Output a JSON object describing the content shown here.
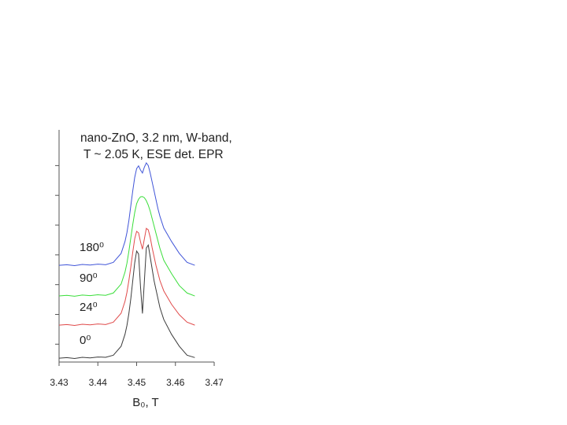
{
  "chart_data": {
    "type": "line",
    "title": [
      "nano-ZnO, 3.2 nm, W-band,",
      "T ~ 2.05 K, ESE det. EPR"
    ],
    "xlabel": "B₀, T",
    "x": [
      3.43,
      3.432,
      3.434,
      3.436,
      3.438,
      3.44,
      3.442,
      3.444,
      3.446,
      3.447,
      3.4475,
      3.448,
      3.4485,
      3.449,
      3.4495,
      3.45,
      3.4505,
      3.451,
      3.4515,
      3.452,
      3.4525,
      3.453,
      3.4535,
      3.454,
      3.4545,
      3.455,
      3.4555,
      3.456,
      3.457,
      3.459,
      3.461,
      3.463,
      3.465
    ],
    "series": [
      {
        "name": "0⁰",
        "color": "#3c3c3c",
        "values": [
          -0.47,
          -0.45,
          -0.48,
          -0.44,
          -0.46,
          -0.43,
          -0.44,
          -0.37,
          -0.07,
          0.33,
          0.63,
          1.03,
          1.53,
          2.13,
          2.73,
          3.13,
          3.03,
          1.93,
          1.03,
          2.13,
          3.23,
          3.33,
          2.93,
          2.53,
          2.13,
          1.83,
          1.53,
          1.23,
          0.83,
          0.33,
          -0.07,
          -0.37,
          -0.45
        ]
      },
      {
        "name": "24⁰",
        "color": "#e04a4a",
        "values": [
          0.64,
          0.66,
          0.63,
          0.67,
          0.65,
          0.68,
          0.66,
          0.74,
          1.04,
          1.44,
          1.74,
          2.14,
          2.59,
          3.09,
          3.54,
          3.79,
          3.74,
          3.44,
          3.19,
          3.54,
          3.89,
          3.84,
          3.59,
          3.24,
          2.94,
          2.64,
          2.39,
          2.14,
          1.79,
          1.34,
          0.99,
          0.74,
          0.64
        ]
      },
      {
        "name": "90⁰",
        "color": "#3ade3a",
        "values": [
          1.62,
          1.64,
          1.61,
          1.65,
          1.63,
          1.66,
          1.64,
          1.72,
          2.02,
          2.42,
          2.72,
          3.12,
          3.57,
          4.02,
          4.42,
          4.72,
          4.87,
          4.95,
          4.96,
          4.92,
          4.82,
          4.67,
          4.47,
          4.22,
          3.97,
          3.72,
          3.47,
          3.22,
          2.82,
          2.37,
          1.97,
          1.72,
          1.62
        ]
      },
      {
        "name": "180⁰",
        "color": "#4055d8",
        "values": [
          2.65,
          2.67,
          2.64,
          2.68,
          2.66,
          2.69,
          2.67,
          2.75,
          3.05,
          3.45,
          3.75,
          4.15,
          4.65,
          5.15,
          5.6,
          5.9,
          5.99,
          5.85,
          5.75,
          5.95,
          6.09,
          6.0,
          5.75,
          5.45,
          5.15,
          4.85,
          4.55,
          4.3,
          3.9,
          3.45,
          3.05,
          2.75,
          2.65
        ]
      }
    ],
    "xlim": [
      3.43,
      3.47
    ],
    "xticks": [
      3.43,
      3.44,
      3.45,
      3.46,
      3.47
    ],
    "ylim": [
      -0.6,
      7.2
    ],
    "yticks": [
      0,
      1,
      2,
      3,
      4,
      5,
      6
    ]
  }
}
